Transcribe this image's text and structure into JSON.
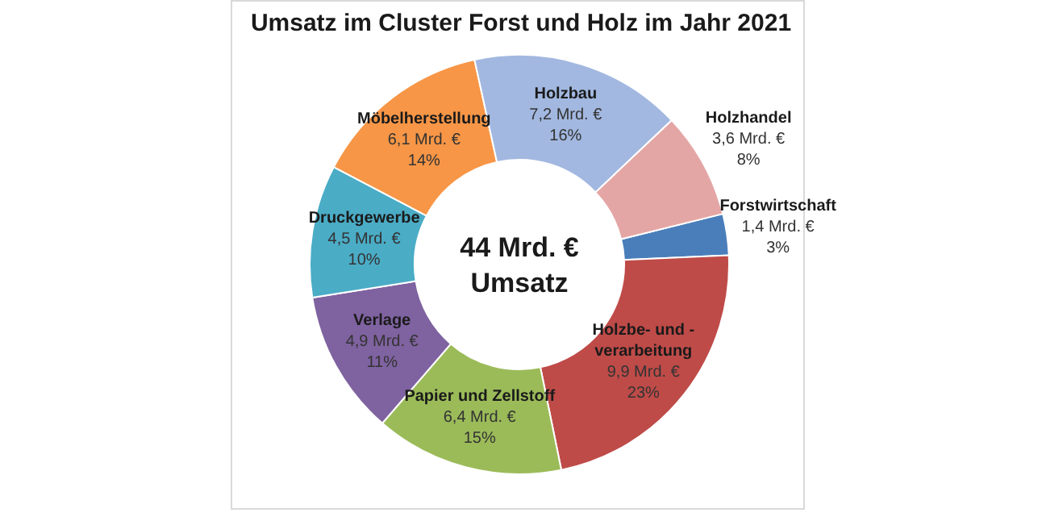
{
  "chart_data": {
    "type": "donut",
    "title": "Umsatz im Cluster Forst und Holz im Jahr 2021",
    "categories": [
      "Forstwirtschaft",
      "Holzbe- und -verarbeitung",
      "Papier und Zellstoff",
      "Verlage",
      "Druckgewerbe",
      "Möbelherstellung",
      "Holzbau",
      "Holzhandel"
    ],
    "values": [
      1.4,
      9.9,
      6.4,
      4.9,
      4.5,
      6.1,
      7.2,
      3.6
    ],
    "colors": [
      "#4a7ebb",
      "#be4b48",
      "#9bbb59",
      "#7f62a0",
      "#4bacc6",
      "#f79646",
      "#a2b8e0",
      "#e4a6a5"
    ],
    "value_labels": [
      "1,4 Mrd. €\n3%",
      "9,9 Mrd. €\n23%",
      "6,4 Mrd. €\n15%",
      "4,9 Mrd. €\n11%",
      "4,5 Mrd. €\n10%",
      "6,1 Mrd. €\n14%",
      "7,2 Mrd. €\n16%",
      "3,6 Mrd. €\n8%"
    ],
    "annotations": [
      "44 Mrd. €\nUmsatz"
    ]
  }
}
